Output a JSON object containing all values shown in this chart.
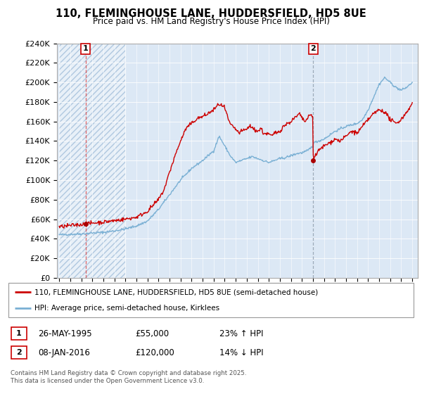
{
  "title": "110, FLEMINGHOUSE LANE, HUDDERSFIELD, HD5 8UE",
  "subtitle": "Price paid vs. HM Land Registry's House Price Index (HPI)",
  "ylim": [
    0,
    240000
  ],
  "yticks": [
    0,
    20000,
    40000,
    60000,
    80000,
    100000,
    120000,
    140000,
    160000,
    180000,
    200000,
    220000,
    240000
  ],
  "ytick_labels": [
    "£0",
    "£20K",
    "£40K",
    "£60K",
    "£80K",
    "£100K",
    "£120K",
    "£140K",
    "£160K",
    "£180K",
    "£200K",
    "£220K",
    "£240K"
  ],
  "sale1_date": 1995.4,
  "sale1_price": 55000,
  "sale1_label": "1",
  "sale2_date": 2016.03,
  "sale2_price": 120000,
  "sale2_label": "2",
  "legend_line1": "110, FLEMINGHOUSE LANE, HUDDERSFIELD, HD5 8UE (semi-detached house)",
  "legend_line2": "HPI: Average price, semi-detached house, Kirklees",
  "table_row1": [
    "1",
    "26-MAY-1995",
    "£55,000",
    "23% ↑ HPI"
  ],
  "table_row2": [
    "2",
    "08-JAN-2016",
    "£120,000",
    "14% ↓ HPI"
  ],
  "footer": "Contains HM Land Registry data © Crown copyright and database right 2025.\nThis data is licensed under the Open Government Licence v3.0.",
  "bg_color": "#dce8f5",
  "line_color_red": "#cc0000",
  "line_color_blue": "#7ab0d4",
  "marker_color_red": "#aa0000",
  "vline1_color": "#dd4444",
  "vline2_color": "#8899aa"
}
